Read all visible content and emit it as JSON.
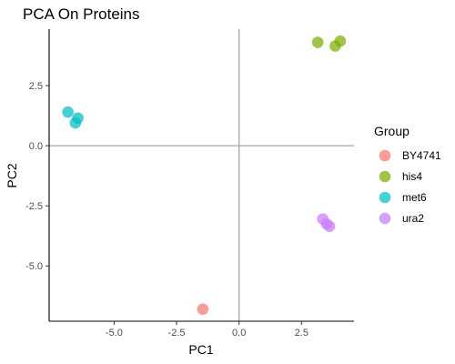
{
  "chart_data": {
    "type": "scatter",
    "title": "PCA On Proteins",
    "xlabel": "PC1",
    "ylabel": "PC2",
    "xlim": [
      -7.6,
      4.6
    ],
    "ylim": [
      -7.3,
      4.85
    ],
    "x_ticks": [
      -5.0,
      -2.5,
      0.0,
      2.5
    ],
    "x_tick_labels": [
      "-5.0",
      "-2.5",
      "0.0",
      "2.5"
    ],
    "y_ticks": [
      2.5,
      0.0,
      -2.5,
      -5.0
    ],
    "y_tick_labels": [
      "2.5",
      "0.0",
      "-2.5",
      "-5.0"
    ],
    "reference_lines": {
      "x": 0,
      "y": 0
    },
    "grid": false,
    "legend": {
      "title": "Group",
      "placement": "right"
    },
    "series": [
      {
        "name": "BY4741",
        "color": "#F8766D",
        "points": [
          {
            "x": -1.45,
            "y": -6.8
          }
        ]
      },
      {
        "name": "his4",
        "color": "#7CAE00",
        "points": [
          {
            "x": 3.15,
            "y": 4.3
          },
          {
            "x": 3.85,
            "y": 4.15
          },
          {
            "x": 4.05,
            "y": 4.35
          }
        ]
      },
      {
        "name": "met6",
        "color": "#00BFC4",
        "points": [
          {
            "x": -6.85,
            "y": 1.4
          },
          {
            "x": -6.45,
            "y": 1.15
          },
          {
            "x": -6.55,
            "y": 0.95
          }
        ]
      },
      {
        "name": "ura2",
        "color": "#C77CFF",
        "points": [
          {
            "x": 3.35,
            "y": -3.05
          },
          {
            "x": 3.5,
            "y": -3.25
          },
          {
            "x": 3.62,
            "y": -3.35
          }
        ]
      }
    ]
  }
}
